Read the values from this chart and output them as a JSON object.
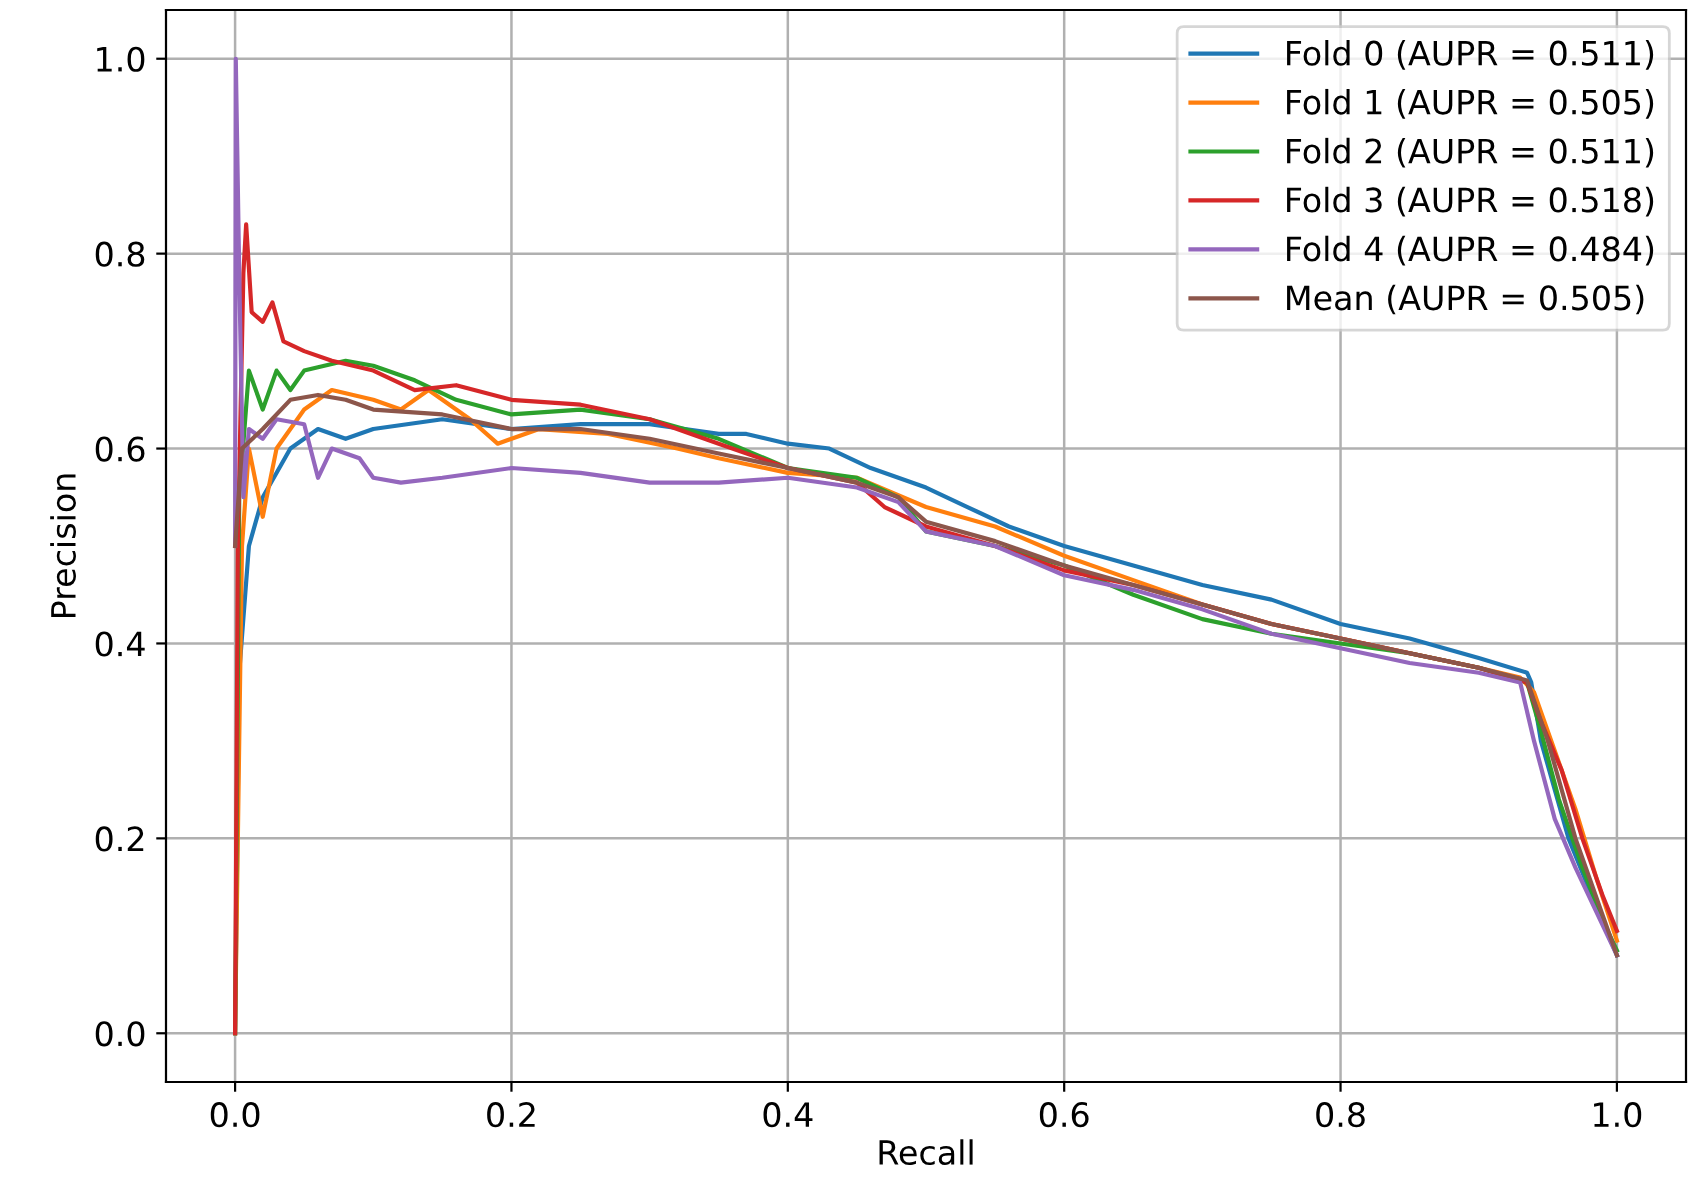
{
  "chart_data": {
    "type": "line",
    "xlabel": "Recall",
    "ylabel": "Precision",
    "xlim": [
      -0.05,
      1.05
    ],
    "ylim": [
      -0.05,
      1.05
    ],
    "xticks": [
      {
        "value": 0,
        "label": "0.0"
      },
      0.2,
      0.4,
      0.6,
      0.8,
      {
        "value": 1,
        "label": "1.0"
      }
    ],
    "yticks": [
      {
        "value": 0,
        "label": "0.0"
      },
      0.2,
      0.4,
      0.6,
      0.8,
      {
        "value": 1,
        "label": "1.0"
      }
    ],
    "grid": true,
    "legend": "top right",
    "line_style": "solid",
    "series": [
      {
        "name": "Fold 0 (AUPR = 0.511)",
        "color": "#1f77b4",
        "x": [
          0,
          0.003,
          0.01,
          0.02,
          0.04,
          0.06,
          0.08,
          0.1,
          0.15,
          0.2,
          0.25,
          0.3,
          0.35,
          0.37,
          0.4,
          0.43,
          0.46,
          0.5,
          0.53,
          0.56,
          0.6,
          0.65,
          0.7,
          0.75,
          0.8,
          0.85,
          0.9,
          0.935,
          0.938,
          0.945,
          0.965,
          0.985,
          1.0
        ],
        "values": [
          0,
          0.37,
          0.5,
          0.55,
          0.6,
          0.62,
          0.61,
          0.62,
          0.63,
          0.62,
          0.625,
          0.625,
          0.615,
          0.615,
          0.605,
          0.6,
          0.58,
          0.56,
          0.54,
          0.52,
          0.5,
          0.48,
          0.46,
          0.445,
          0.42,
          0.405,
          0.385,
          0.37,
          0.36,
          0.3,
          0.2,
          0.13,
          0.08
        ]
      },
      {
        "name": "Fold 1 (AUPR = 0.505)",
        "color": "#ff7f0e",
        "x": [
          0,
          0.005,
          0.01,
          0.02,
          0.03,
          0.05,
          0.07,
          0.1,
          0.12,
          0.14,
          0.17,
          0.19,
          0.22,
          0.27,
          0.32,
          0.35,
          0.4,
          0.45,
          0.5,
          0.55,
          0.6,
          0.65,
          0.7,
          0.75,
          0.8,
          0.85,
          0.9,
          0.93,
          0.94,
          0.955,
          0.97,
          0.985,
          1.0
        ],
        "values": [
          0,
          0.5,
          0.6,
          0.53,
          0.6,
          0.64,
          0.66,
          0.65,
          0.64,
          0.66,
          0.63,
          0.605,
          0.62,
          0.615,
          0.6,
          0.59,
          0.575,
          0.57,
          0.54,
          0.52,
          0.49,
          0.465,
          0.44,
          0.42,
          0.405,
          0.39,
          0.375,
          0.365,
          0.35,
          0.29,
          0.23,
          0.16,
          0.095
        ]
      },
      {
        "name": "Fold 2 (AUPR = 0.511)",
        "color": "#2ca02c",
        "x": [
          0,
          0.003,
          0.01,
          0.02,
          0.03,
          0.04,
          0.05,
          0.08,
          0.1,
          0.13,
          0.16,
          0.2,
          0.25,
          0.3,
          0.35,
          0.4,
          0.45,
          0.48,
          0.5,
          0.55,
          0.6,
          0.65,
          0.7,
          0.75,
          0.8,
          0.85,
          0.9,
          0.935,
          0.945,
          0.958,
          0.975,
          0.99,
          1.0
        ],
        "values": [
          0,
          0.55,
          0.68,
          0.64,
          0.68,
          0.66,
          0.68,
          0.69,
          0.685,
          0.67,
          0.65,
          0.635,
          0.64,
          0.63,
          0.61,
          0.58,
          0.57,
          0.55,
          0.515,
          0.5,
          0.48,
          0.45,
          0.425,
          0.41,
          0.4,
          0.39,
          0.375,
          0.36,
          0.31,
          0.24,
          0.17,
          0.115,
          0.085
        ]
      },
      {
        "name": "Fold 3 (AUPR = 0.518)",
        "color": "#d62728",
        "x": [
          0,
          0.002,
          0.006,
          0.008,
          0.012,
          0.02,
          0.027,
          0.035,
          0.05,
          0.07,
          0.1,
          0.13,
          0.16,
          0.2,
          0.25,
          0.3,
          0.35,
          0.4,
          0.45,
          0.47,
          0.5,
          0.55,
          0.6,
          0.65,
          0.7,
          0.75,
          0.8,
          0.85,
          0.9,
          0.935,
          0.945,
          0.96,
          0.975,
          0.99,
          1.0
        ],
        "values": [
          0,
          0.5,
          0.78,
          0.83,
          0.74,
          0.73,
          0.75,
          0.71,
          0.7,
          0.69,
          0.68,
          0.66,
          0.665,
          0.65,
          0.645,
          0.63,
          0.605,
          0.58,
          0.565,
          0.54,
          0.52,
          0.5,
          0.475,
          0.46,
          0.44,
          0.42,
          0.405,
          0.39,
          0.375,
          0.36,
          0.32,
          0.27,
          0.2,
          0.14,
          0.105
        ]
      },
      {
        "name": "Fold 4 (AUPR = 0.484)",
        "color": "#9467bd",
        "x": [
          0,
          0.0005,
          0.003,
          0.006,
          0.01,
          0.02,
          0.03,
          0.05,
          0.06,
          0.07,
          0.09,
          0.1,
          0.12,
          0.15,
          0.2,
          0.25,
          0.3,
          0.35,
          0.4,
          0.45,
          0.48,
          0.5,
          0.55,
          0.6,
          0.65,
          0.7,
          0.75,
          0.8,
          0.85,
          0.9,
          0.93,
          0.94,
          0.955,
          0.97,
          0.99,
          1.0
        ],
        "values": [
          0.5,
          1.0,
          0.78,
          0.55,
          0.62,
          0.61,
          0.63,
          0.625,
          0.57,
          0.6,
          0.59,
          0.57,
          0.565,
          0.57,
          0.58,
          0.575,
          0.565,
          0.565,
          0.57,
          0.56,
          0.545,
          0.515,
          0.5,
          0.47,
          0.455,
          0.435,
          0.41,
          0.395,
          0.38,
          0.37,
          0.36,
          0.3,
          0.22,
          0.17,
          0.11,
          0.08
        ]
      },
      {
        "name": "Mean (AUPR = 0.505)",
        "color": "#8c564b",
        "x": [
          0,
          0.005,
          0.02,
          0.04,
          0.06,
          0.08,
          0.1,
          0.15,
          0.2,
          0.25,
          0.3,
          0.35,
          0.4,
          0.45,
          0.48,
          0.5,
          0.55,
          0.6,
          0.65,
          0.7,
          0.75,
          0.8,
          0.85,
          0.9,
          0.935,
          0.95,
          0.97,
          0.99,
          1.0
        ],
        "values": [
          0.5,
          0.6,
          0.62,
          0.65,
          0.655,
          0.65,
          0.64,
          0.635,
          0.62,
          0.62,
          0.61,
          0.595,
          0.58,
          0.565,
          0.55,
          0.525,
          0.505,
          0.48,
          0.46,
          0.44,
          0.42,
          0.405,
          0.39,
          0.375,
          0.362,
          0.3,
          0.2,
          0.12,
          0.08
        ]
      }
    ]
  }
}
